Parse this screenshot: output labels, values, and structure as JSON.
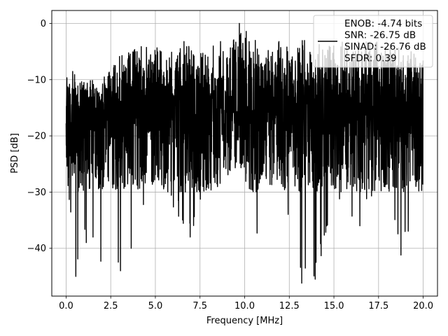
{
  "chart_data": {
    "type": "line",
    "xlabel": "Frequency [MHz]",
    "ylabel": "PSD [dB]",
    "xlim": [
      -0.8,
      20.8
    ],
    "ylim": [
      -48.5,
      2.3
    ],
    "xticks": [
      0.0,
      2.5,
      5.0,
      7.5,
      10.0,
      12.5,
      15.0,
      17.5,
      20.0
    ],
    "xtick_labels": [
      "0.0",
      "2.5",
      "5.0",
      "7.5",
      "10.0",
      "12.5",
      "15.0",
      "17.5",
      "20.0"
    ],
    "yticks": [
      0,
      -10,
      -20,
      -30,
      -40
    ],
    "ytick_labels": [
      "0",
      "−10",
      "−20",
      "−30",
      "−40"
    ],
    "grid": true,
    "legend_position": "top-right",
    "line_color": "#000000",
    "series": [
      {
        "legend_lines": [
          "ENOB: -4.74 bits",
          "SNR: -26.75 dB",
          "SINAD: -26.76 dB",
          "SFDR: 0.39"
        ],
        "x_range": [
          0.0,
          20.0
        ],
        "envelope": [
          {
            "x": 0.0,
            "y_top": -6.5,
            "y_bottom": -25
          },
          {
            "x": 0.5,
            "y_top": -9,
            "y_bottom": -45
          },
          {
            "x": 1.0,
            "y_top": -10,
            "y_bottom": -39
          },
          {
            "x": 2.0,
            "y_top": -10,
            "y_bottom": -42
          },
          {
            "x": 2.5,
            "y_top": -8,
            "y_bottom": -38
          },
          {
            "x": 3.0,
            "y_top": -5,
            "y_bottom": -44
          },
          {
            "x": 3.7,
            "y_top": -4,
            "y_bottom": -40
          },
          {
            "x": 5.0,
            "y_top": -4,
            "y_bottom": -28
          },
          {
            "x": 6.2,
            "y_top": -3,
            "y_bottom": -34
          },
          {
            "x": 7.0,
            "y_top": -3,
            "y_bottom": -38
          },
          {
            "x": 8.0,
            "y_top": -3,
            "y_bottom": -30
          },
          {
            "x": 9.0,
            "y_top": -2,
            "y_bottom": -28
          },
          {
            "x": 9.7,
            "y_top": 0,
            "y_bottom": -25
          },
          {
            "x": 10.7,
            "y_top": -3,
            "y_bottom": -37
          },
          {
            "x": 12.0,
            "y_top": -3,
            "y_bottom": -28
          },
          {
            "x": 13.2,
            "y_top": -3,
            "y_bottom": -46
          },
          {
            "x": 14.0,
            "y_top": -2,
            "y_bottom": -45
          },
          {
            "x": 15.0,
            "y_top": -3,
            "y_bottom": -32
          },
          {
            "x": 16.5,
            "y_top": -3,
            "y_bottom": -36
          },
          {
            "x": 17.5,
            "y_top": -3,
            "y_bottom": -29
          },
          {
            "x": 18.8,
            "y_top": -4,
            "y_bottom": -41
          },
          {
            "x": 20.0,
            "y_top": -5,
            "y_bottom": -34
          }
        ],
        "notable_points": [
          {
            "x": 0.55,
            "y": -45.0
          },
          {
            "x": 1.95,
            "y": -42.3
          },
          {
            "x": 3.05,
            "y": -44.0
          },
          {
            "x": 3.65,
            "y": -40.0
          },
          {
            "x": 6.3,
            "y": -34.3
          },
          {
            "x": 6.95,
            "y": -38.0
          },
          {
            "x": 9.7,
            "y": 0.0
          },
          {
            "x": 10.7,
            "y": -37.3
          },
          {
            "x": 13.2,
            "y": -46.2
          },
          {
            "x": 13.95,
            "y": -45.5
          },
          {
            "x": 16.45,
            "y": -36.0
          },
          {
            "x": 18.75,
            "y": -41.2
          }
        ]
      }
    ]
  }
}
